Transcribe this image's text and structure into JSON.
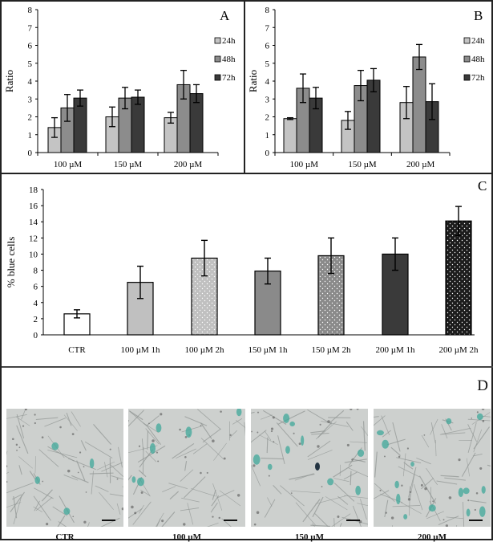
{
  "figure": {
    "panels": [
      "A",
      "B",
      "C",
      "D"
    ]
  },
  "panelA": {
    "letter": "A",
    "ylabel": "Ratio"
  },
  "panelB": {
    "letter": "B",
    "ylabel": "Ratio"
  },
  "panelC": {
    "letter": "C",
    "ylabel": "% blue cells"
  },
  "panelD": {
    "letter": "D",
    "images": [
      {
        "label": "CTR",
        "description": "micrograph, few blue-stained cells"
      },
      {
        "label": "100 µM",
        "description": "micrograph, some blue-stained cells"
      },
      {
        "label": "150 µM",
        "description": "micrograph, more blue-stained cells"
      },
      {
        "label": "200 µM",
        "description": "micrograph, many blue-stained cells"
      }
    ]
  },
  "colors": {
    "24h": "#c4c4c4",
    "48h": "#8c8c8c",
    "72h": "#3a3a3a",
    "CTR": "#ffffff",
    "100_1h": "#c0c0c0",
    "100_2h": "#c0c0c0",
    "150_1h": "#8a8a8a",
    "150_2h": "#8a8a8a",
    "200_1h": "#3a3a3a",
    "200_2h": "#1c1c1c",
    "stain": "#3fa89a"
  },
  "chart_data": [
    {
      "panel": "A",
      "type": "bar",
      "title": "",
      "xlabel": "",
      "ylabel": "Ratio",
      "ylim": [
        0,
        8
      ],
      "yticks": [
        0,
        1,
        2,
        3,
        4,
        5,
        6,
        7,
        8
      ],
      "categories": [
        "100 µM",
        "150 µM",
        "200 µM"
      ],
      "legend_position": "right",
      "series": [
        {
          "name": "24h",
          "values": [
            1.4,
            2.0,
            1.95
          ],
          "errors": [
            0.55,
            0.55,
            0.3
          ]
        },
        {
          "name": "48h",
          "values": [
            2.5,
            3.05,
            3.8
          ],
          "errors": [
            0.75,
            0.6,
            0.8
          ]
        },
        {
          "name": "72h",
          "values": [
            3.05,
            3.1,
            3.3
          ],
          "errors": [
            0.45,
            0.4,
            0.5
          ]
        }
      ]
    },
    {
      "panel": "B",
      "type": "bar",
      "title": "",
      "xlabel": "",
      "ylabel": "Ratio",
      "ylim": [
        0,
        8
      ],
      "yticks": [
        0,
        1,
        2,
        3,
        4,
        5,
        6,
        7,
        8
      ],
      "categories": [
        "100 µM",
        "150 µM",
        "200 µM"
      ],
      "legend_position": "right",
      "series": [
        {
          "name": "24h",
          "values": [
            1.9,
            1.8,
            2.8
          ],
          "errors": [
            0.05,
            0.5,
            0.9
          ]
        },
        {
          "name": "48h",
          "values": [
            3.6,
            3.75,
            5.35
          ],
          "errors": [
            0.8,
            0.85,
            0.7
          ]
        },
        {
          "name": "72h",
          "values": [
            3.05,
            4.05,
            2.85
          ],
          "errors": [
            0.6,
            0.65,
            1.0
          ]
        }
      ]
    },
    {
      "panel": "C",
      "type": "bar",
      "title": "",
      "xlabel": "",
      "ylabel": "% blue cells",
      "ylim": [
        0,
        18
      ],
      "yticks": [
        0,
        2,
        4,
        6,
        8,
        10,
        12,
        14,
        16,
        18
      ],
      "categories": [
        "CTR",
        "100 µM 1h",
        "100 µM 2h",
        "150 µM 1h",
        "150 µM 2h",
        "200 µM 1h",
        "200 µM 2h"
      ],
      "values": [
        2.6,
        6.5,
        9.5,
        7.9,
        9.8,
        10.0,
        14.1
      ],
      "errors": [
        0.5,
        2.0,
        2.2,
        1.6,
        2.2,
        2.0,
        1.8
      ],
      "patterns": [
        "none",
        "none",
        "dots",
        "none",
        "dots",
        "none",
        "dots"
      ]
    }
  ]
}
